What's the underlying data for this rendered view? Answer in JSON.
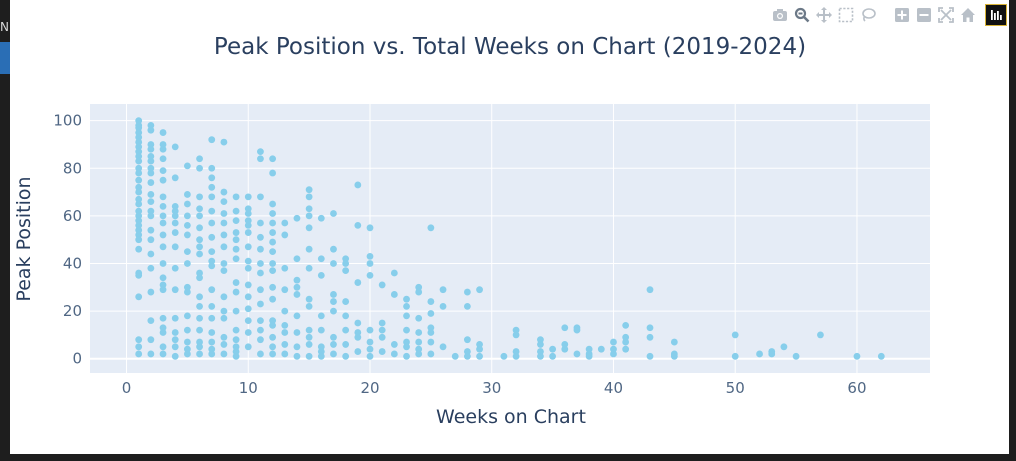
{
  "left_strip": {
    "text": "N"
  },
  "modebar": {
    "icons": [
      "camera-icon",
      "zoom-icon",
      "pan-icon",
      "box-select-icon",
      "lasso-select-icon",
      "zoom-in-icon",
      "zoom-out-icon",
      "autoscale-icon",
      "reset-axes-icon",
      "plotly-logo-icon"
    ],
    "icon_color": "#b9c0c8",
    "active_color": "#6c7987"
  },
  "chart_data": {
    "type": "scatter",
    "title": "Peak Position vs. Total Weeks on Chart (2019-2024)",
    "xlabel": "Weeks on Chart",
    "ylabel": "Peak Position",
    "xlim": [
      -3,
      66
    ],
    "ylim": [
      -6,
      107
    ],
    "xticks": [
      0,
      10,
      20,
      30,
      40,
      50,
      60
    ],
    "yticks": [
      0,
      20,
      40,
      60,
      80,
      100
    ],
    "grid": true,
    "legend": "none",
    "colors": {
      "marker": "#87ceeb",
      "plot_bg": "#e5ecf6",
      "grid": "#ffffff",
      "text": "#2a3f5f",
      "tick_text": "#506784"
    },
    "points": [
      [
        1,
        100
      ],
      [
        1,
        98
      ],
      [
        1,
        97
      ],
      [
        1,
        95
      ],
      [
        1,
        93
      ],
      [
        1,
        91
      ],
      [
        1,
        89
      ],
      [
        1,
        87
      ],
      [
        1,
        85
      ],
      [
        1,
        83
      ],
      [
        1,
        80
      ],
      [
        1,
        78
      ],
      [
        1,
        75
      ],
      [
        1,
        72
      ],
      [
        1,
        70
      ],
      [
        1,
        67
      ],
      [
        1,
        65
      ],
      [
        1,
        62
      ],
      [
        1,
        60
      ],
      [
        1,
        58
      ],
      [
        1,
        56
      ],
      [
        1,
        54
      ],
      [
        1,
        52
      ],
      [
        1,
        50
      ],
      [
        1,
        46
      ],
      [
        1,
        36
      ],
      [
        1,
        35
      ],
      [
        1,
        26
      ],
      [
        1,
        8
      ],
      [
        1,
        5
      ],
      [
        1,
        2
      ],
      [
        2,
        98
      ],
      [
        2,
        96
      ],
      [
        2,
        90
      ],
      [
        2,
        88
      ],
      [
        2,
        85
      ],
      [
        2,
        83
      ],
      [
        2,
        80
      ],
      [
        2,
        78
      ],
      [
        2,
        74
      ],
      [
        2,
        69
      ],
      [
        2,
        66
      ],
      [
        2,
        62
      ],
      [
        2,
        60
      ],
      [
        2,
        54
      ],
      [
        2,
        50
      ],
      [
        2,
        44
      ],
      [
        2,
        38
      ],
      [
        2,
        28
      ],
      [
        2,
        16
      ],
      [
        2,
        8
      ],
      [
        2,
        2
      ],
      [
        3,
        95
      ],
      [
        3,
        90
      ],
      [
        3,
        88
      ],
      [
        3,
        84
      ],
      [
        3,
        79
      ],
      [
        3,
        75
      ],
      [
        3,
        68
      ],
      [
        3,
        64
      ],
      [
        3,
        60
      ],
      [
        3,
        57
      ],
      [
        3,
        52
      ],
      [
        3,
        47
      ],
      [
        3,
        40
      ],
      [
        3,
        34
      ],
      [
        3,
        31
      ],
      [
        3,
        29
      ],
      [
        3,
        17
      ],
      [
        3,
        13
      ],
      [
        3,
        11
      ],
      [
        3,
        5
      ],
      [
        3,
        2
      ],
      [
        4,
        89
      ],
      [
        4,
        76
      ],
      [
        4,
        64
      ],
      [
        4,
        62
      ],
      [
        4,
        60
      ],
      [
        4,
        57
      ],
      [
        4,
        53
      ],
      [
        4,
        47
      ],
      [
        4,
        38
      ],
      [
        4,
        29
      ],
      [
        4,
        17
      ],
      [
        4,
        11
      ],
      [
        4,
        8
      ],
      [
        4,
        5
      ],
      [
        4,
        1
      ],
      [
        5,
        81
      ],
      [
        5,
        69
      ],
      [
        5,
        65
      ],
      [
        5,
        60
      ],
      [
        5,
        56
      ],
      [
        5,
        52
      ],
      [
        5,
        45
      ],
      [
        5,
        40
      ],
      [
        5,
        30
      ],
      [
        5,
        28
      ],
      [
        5,
        18
      ],
      [
        5,
        12
      ],
      [
        5,
        7
      ],
      [
        5,
        4
      ],
      [
        5,
        2
      ],
      [
        6,
        84
      ],
      [
        6,
        80
      ],
      [
        6,
        68
      ],
      [
        6,
        63
      ],
      [
        6,
        60
      ],
      [
        6,
        55
      ],
      [
        6,
        50
      ],
      [
        6,
        47
      ],
      [
        6,
        44
      ],
      [
        6,
        36
      ],
      [
        6,
        34
      ],
      [
        6,
        26
      ],
      [
        6,
        22
      ],
      [
        6,
        17
      ],
      [
        6,
        12
      ],
      [
        6,
        7
      ],
      [
        6,
        5
      ],
      [
        6,
        2
      ],
      [
        7,
        92
      ],
      [
        7,
        80
      ],
      [
        7,
        76
      ],
      [
        7,
        72
      ],
      [
        7,
        68
      ],
      [
        7,
        62
      ],
      [
        7,
        57
      ],
      [
        7,
        51
      ],
      [
        7,
        45
      ],
      [
        7,
        41
      ],
      [
        7,
        39
      ],
      [
        7,
        29
      ],
      [
        7,
        22
      ],
      [
        7,
        17
      ],
      [
        7,
        11
      ],
      [
        7,
        7
      ],
      [
        7,
        4
      ],
      [
        7,
        2
      ],
      [
        8,
        91
      ],
      [
        8,
        70
      ],
      [
        8,
        66
      ],
      [
        8,
        61
      ],
      [
        8,
        57
      ],
      [
        8,
        52
      ],
      [
        8,
        47
      ],
      [
        8,
        40
      ],
      [
        8,
        37
      ],
      [
        8,
        26
      ],
      [
        8,
        20
      ],
      [
        8,
        17
      ],
      [
        8,
        9
      ],
      [
        8,
        6
      ],
      [
        8,
        2
      ],
      [
        9,
        68
      ],
      [
        9,
        62
      ],
      [
        9,
        58
      ],
      [
        9,
        53
      ],
      [
        9,
        50
      ],
      [
        9,
        46
      ],
      [
        9,
        42
      ],
      [
        9,
        32
      ],
      [
        9,
        28
      ],
      [
        9,
        20
      ],
      [
        9,
        12
      ],
      [
        9,
        8
      ],
      [
        9,
        5
      ],
      [
        9,
        3
      ],
      [
        9,
        1
      ],
      [
        10,
        68
      ],
      [
        10,
        63
      ],
      [
        10,
        61
      ],
      [
        10,
        58
      ],
      [
        10,
        56
      ],
      [
        10,
        53
      ],
      [
        10,
        47
      ],
      [
        10,
        41
      ],
      [
        10,
        38
      ],
      [
        10,
        31
      ],
      [
        10,
        26
      ],
      [
        10,
        21
      ],
      [
        10,
        16
      ],
      [
        10,
        11
      ],
      [
        10,
        5
      ],
      [
        11,
        87
      ],
      [
        11,
        84
      ],
      [
        11,
        68
      ],
      [
        11,
        57
      ],
      [
        11,
        51
      ],
      [
        11,
        46
      ],
      [
        11,
        40
      ],
      [
        11,
        36
      ],
      [
        11,
        29
      ],
      [
        11,
        23
      ],
      [
        11,
        16
      ],
      [
        11,
        12
      ],
      [
        11,
        8
      ],
      [
        11,
        2
      ],
      [
        12,
        84
      ],
      [
        12,
        78
      ],
      [
        12,
        65
      ],
      [
        12,
        61
      ],
      [
        12,
        57
      ],
      [
        12,
        53
      ],
      [
        12,
        49
      ],
      [
        12,
        45
      ],
      [
        12,
        40
      ],
      [
        12,
        37
      ],
      [
        12,
        30
      ],
      [
        12,
        25
      ],
      [
        12,
        16
      ],
      [
        12,
        14
      ],
      [
        12,
        9
      ],
      [
        12,
        5
      ],
      [
        12,
        2
      ],
      [
        13,
        57
      ],
      [
        13,
        52
      ],
      [
        13,
        38
      ],
      [
        13,
        29
      ],
      [
        13,
        20
      ],
      [
        13,
        14
      ],
      [
        13,
        11
      ],
      [
        13,
        6
      ],
      [
        13,
        2
      ],
      [
        14,
        59
      ],
      [
        14,
        42
      ],
      [
        14,
        33
      ],
      [
        14,
        30
      ],
      [
        14,
        27
      ],
      [
        14,
        18
      ],
      [
        14,
        11
      ],
      [
        14,
        5
      ],
      [
        14,
        1
      ],
      [
        15,
        71
      ],
      [
        15,
        68
      ],
      [
        15,
        63
      ],
      [
        15,
        60
      ],
      [
        15,
        55
      ],
      [
        15,
        46
      ],
      [
        15,
        38
      ],
      [
        15,
        25
      ],
      [
        15,
        22
      ],
      [
        15,
        12
      ],
      [
        15,
        9
      ],
      [
        15,
        6
      ],
      [
        15,
        1
      ],
      [
        16,
        59
      ],
      [
        16,
        42
      ],
      [
        16,
        35
      ],
      [
        16,
        18
      ],
      [
        16,
        12
      ],
      [
        16,
        5
      ],
      [
        16,
        3
      ],
      [
        16,
        1
      ],
      [
        17,
        61
      ],
      [
        17,
        46
      ],
      [
        17,
        40
      ],
      [
        17,
        27
      ],
      [
        17,
        24
      ],
      [
        17,
        20
      ],
      [
        17,
        9
      ],
      [
        17,
        6
      ],
      [
        17,
        2
      ],
      [
        18,
        42
      ],
      [
        18,
        40
      ],
      [
        18,
        37
      ],
      [
        18,
        24
      ],
      [
        18,
        18
      ],
      [
        18,
        12
      ],
      [
        18,
        6
      ],
      [
        18,
        1
      ],
      [
        19,
        73
      ],
      [
        19,
        56
      ],
      [
        19,
        32
      ],
      [
        19,
        15
      ],
      [
        19,
        11
      ],
      [
        19,
        9
      ],
      [
        19,
        3
      ],
      [
        20,
        55
      ],
      [
        20,
        43
      ],
      [
        20,
        40
      ],
      [
        20,
        35
      ],
      [
        20,
        12
      ],
      [
        20,
        7
      ],
      [
        20,
        4
      ],
      [
        20,
        1
      ],
      [
        21,
        31
      ],
      [
        21,
        15
      ],
      [
        21,
        12
      ],
      [
        21,
        9
      ],
      [
        21,
        3
      ],
      [
        22,
        36
      ],
      [
        22,
        27
      ],
      [
        22,
        6
      ],
      [
        22,
        2
      ],
      [
        23,
        25
      ],
      [
        23,
        22
      ],
      [
        23,
        18
      ],
      [
        23,
        12
      ],
      [
        23,
        7
      ],
      [
        23,
        5
      ],
      [
        23,
        1
      ],
      [
        24,
        30
      ],
      [
        24,
        28
      ],
      [
        24,
        17
      ],
      [
        24,
        11
      ],
      [
        24,
        7
      ],
      [
        24,
        4
      ],
      [
        24,
        2
      ],
      [
        25,
        55
      ],
      [
        25,
        24
      ],
      [
        25,
        19
      ],
      [
        25,
        13
      ],
      [
        25,
        11
      ],
      [
        25,
        7
      ],
      [
        25,
        2
      ],
      [
        26,
        29
      ],
      [
        26,
        22
      ],
      [
        26,
        5
      ],
      [
        27,
        1
      ],
      [
        28,
        28
      ],
      [
        28,
        22
      ],
      [
        28,
        8
      ],
      [
        28,
        3
      ],
      [
        28,
        1
      ],
      [
        29,
        29
      ],
      [
        29,
        6
      ],
      [
        29,
        4
      ],
      [
        29,
        1
      ],
      [
        31,
        1
      ],
      [
        32,
        12
      ],
      [
        32,
        10
      ],
      [
        32,
        3
      ],
      [
        32,
        1
      ],
      [
        34,
        8
      ],
      [
        34,
        6
      ],
      [
        34,
        3
      ],
      [
        34,
        1
      ],
      [
        35,
        4
      ],
      [
        35,
        1
      ],
      [
        36,
        13
      ],
      [
        36,
        6
      ],
      [
        36,
        4
      ],
      [
        37,
        13
      ],
      [
        37,
        12
      ],
      [
        37,
        2
      ],
      [
        38,
        4
      ],
      [
        38,
        2
      ],
      [
        38,
        1
      ],
      [
        39,
        4
      ],
      [
        40,
        7
      ],
      [
        40,
        4
      ],
      [
        40,
        2
      ],
      [
        41,
        14
      ],
      [
        41,
        9
      ],
      [
        41,
        7
      ],
      [
        41,
        4
      ],
      [
        43,
        29
      ],
      [
        43,
        13
      ],
      [
        43,
        9
      ],
      [
        43,
        1
      ],
      [
        45,
        7
      ],
      [
        45,
        2
      ],
      [
        45,
        1
      ],
      [
        50,
        10
      ],
      [
        50,
        1
      ],
      [
        52,
        2
      ],
      [
        53,
        3
      ],
      [
        53,
        2
      ],
      [
        54,
        5
      ],
      [
        55,
        1
      ],
      [
        57,
        10
      ],
      [
        60,
        1
      ],
      [
        62,
        1
      ]
    ]
  }
}
